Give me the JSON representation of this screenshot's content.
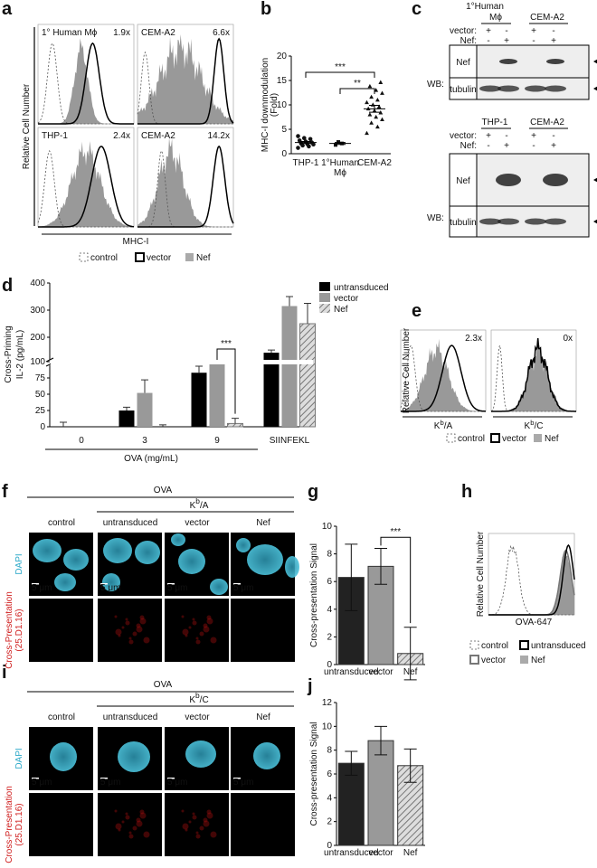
{
  "panels": {
    "a": {
      "letter": "a",
      "histograms": [
        {
          "title": "1° Human Mϕ",
          "fold": "1.9x"
        },
        {
          "title": "CEM-A2",
          "fold": "6.6x"
        },
        {
          "title": "THP-1",
          "fold": "2.4x"
        },
        {
          "title": "CEM-A2",
          "fold": "14.2x"
        }
      ],
      "y_label": "Relative Cell Number",
      "x_label": "MHC-I",
      "legend": [
        "control",
        "vector",
        "Nef"
      ]
    },
    "b": {
      "letter": "b",
      "type": "scatter",
      "y_label": [
        "MHC-I downmodulation",
        "(Fold)"
      ],
      "category_labels": [
        [
          "THP-1"
        ],
        [
          "1°Human",
          "Mϕ"
        ],
        [
          "CEM-A2"
        ]
      ],
      "points": [
        [
          1.2,
          1.5,
          1.7,
          1.9,
          2.0,
          2.1,
          2.3,
          2.5,
          2.7,
          3.0,
          3.2,
          3.6
        ],
        [
          1.8,
          2.1,
          2.4
        ],
        [
          4.2,
          5.5,
          6.3,
          7.0,
          7.5,
          8.0,
          8.4,
          8.8,
          9.2,
          9.6,
          10.0,
          10.5,
          11.0,
          11.6,
          12.4,
          13.0,
          13.8,
          14.6
        ]
      ],
      "means": [
        2.3,
        2.1,
        9.2
      ],
      "errors": [
        0.2,
        0.2,
        0.7
      ],
      "ylim": [
        0,
        20
      ],
      "yticks": [
        0,
        5,
        10,
        15,
        20
      ],
      "significance": [
        "***",
        "**"
      ]
    },
    "c": {
      "letter": "c",
      "top": {
        "groups": [
          [
            "1°Human",
            "Mϕ"
          ],
          [
            "CEM-A2"
          ]
        ],
        "rows": [
          {
            "label": "vector:",
            "signs": [
              "+",
              "-",
              "+",
              "-"
            ]
          },
          {
            "label": "Nef:",
            "signs": [
              "-",
              "+",
              "-",
              "+"
            ]
          }
        ],
        "wb": "WB:",
        "blots": [
          "Nef",
          "tubulin"
        ]
      },
      "bottom": {
        "groups": [
          [
            "THP-1"
          ],
          [
            "CEM-A2"
          ]
        ],
        "rows": [
          {
            "label": "vector:",
            "signs": [
              "+",
              "-",
              "+",
              "-"
            ]
          },
          {
            "label": "Nef:",
            "signs": [
              "-",
              "+",
              "-",
              "+"
            ]
          }
        ],
        "wb": "WB:",
        "blots": [
          "Nef",
          "tubulin"
        ]
      }
    },
    "d": {
      "letter": "d",
      "type": "bar",
      "y_label": [
        "Cross-Priming",
        "IL-2 (pg/mL)"
      ],
      "x_label": "OVA (mg/mL)",
      "categories": [
        "0",
        "3",
        "9",
        "SIINFEKL"
      ],
      "series": [
        {
          "name": "untransduced",
          "color": "#000000",
          "values": [
            0,
            25,
            83,
            143
          ],
          "errors": [
            7,
            5,
            10,
            10
          ]
        },
        {
          "name": "vector",
          "color": "#999999",
          "values": [
            null,
            52,
            97,
            315
          ],
          "errors": [
            null,
            20,
            2,
            35
          ]
        },
        {
          "name": "Nef",
          "color": "#aaaaaa",
          "pattern": "hatch",
          "values": [
            null,
            0,
            5,
            250
          ],
          "errors": [
            null,
            3,
            8,
            75
          ]
        }
      ],
      "ylim": [
        0,
        400
      ],
      "ybreak": 100,
      "yticks": [
        0,
        25,
        50,
        75,
        100,
        200,
        300,
        400
      ],
      "significance": "***"
    },
    "e": {
      "letter": "e",
      "histograms": [
        {
          "label": [
            "K",
            "b",
            "/A"
          ],
          "fold": "2.3x"
        },
        {
          "label": [
            "K",
            "b",
            "/C"
          ],
          "fold": "0x"
        }
      ],
      "y_label": "Relative Cell Number",
      "legend": [
        "control",
        "vector",
        "Nef"
      ]
    },
    "f": {
      "letter": "f",
      "treatment": "OVA",
      "cell_line": [
        "K",
        "b",
        "/A"
      ],
      "columns": [
        "control",
        "untransduced",
        "vector",
        "Nef"
      ],
      "row_labels": {
        "dapi": "DAPI",
        "signal": [
          "Cross-Presentation",
          "(25.D1.16)"
        ]
      },
      "scale_bar": "5 μm"
    },
    "g": {
      "letter": "g",
      "type": "bar",
      "y_label": "Cross-presentation Signal",
      "categories": [
        "untransduced",
        "vector",
        "Nef"
      ],
      "values": [
        6.3,
        7.1,
        0.8
      ],
      "errors": [
        2.4,
        1.3,
        1.9
      ],
      "fills": [
        "#222222",
        "#999999",
        "hatch"
      ],
      "ylim": [
        0,
        10
      ],
      "yticks": [
        0,
        2,
        4,
        6,
        8,
        10
      ],
      "significance": "***"
    },
    "h": {
      "letter": "h",
      "y_label": "Relative Cell Number",
      "x_label": "OVA-647",
      "legend": [
        "control",
        "untransduced",
        "vector",
        "Nef"
      ]
    },
    "i": {
      "letter": "i",
      "treatment": "OVA",
      "cell_line": [
        "K",
        "b",
        "/C"
      ],
      "columns": [
        "control",
        "untransduced",
        "vector",
        "Nef"
      ],
      "row_labels": {
        "dapi": "DAPI",
        "signal": [
          "Cross-Presentation",
          "(25.D1.16)"
        ]
      },
      "scale_bar": "5 μm"
    },
    "j": {
      "letter": "j",
      "type": "bar",
      "y_label": "Cross-presentation Signal",
      "categories": [
        "untransduced",
        "vector",
        "Nef"
      ],
      "values": [
        6.9,
        8.8,
        6.7
      ],
      "errors": [
        1.0,
        1.2,
        1.4
      ],
      "fills": [
        "#222222",
        "#999999",
        "hatch"
      ],
      "ylim": [
        0,
        12
      ],
      "yticks": [
        0,
        2,
        4,
        6,
        8,
        10,
        12
      ]
    }
  }
}
